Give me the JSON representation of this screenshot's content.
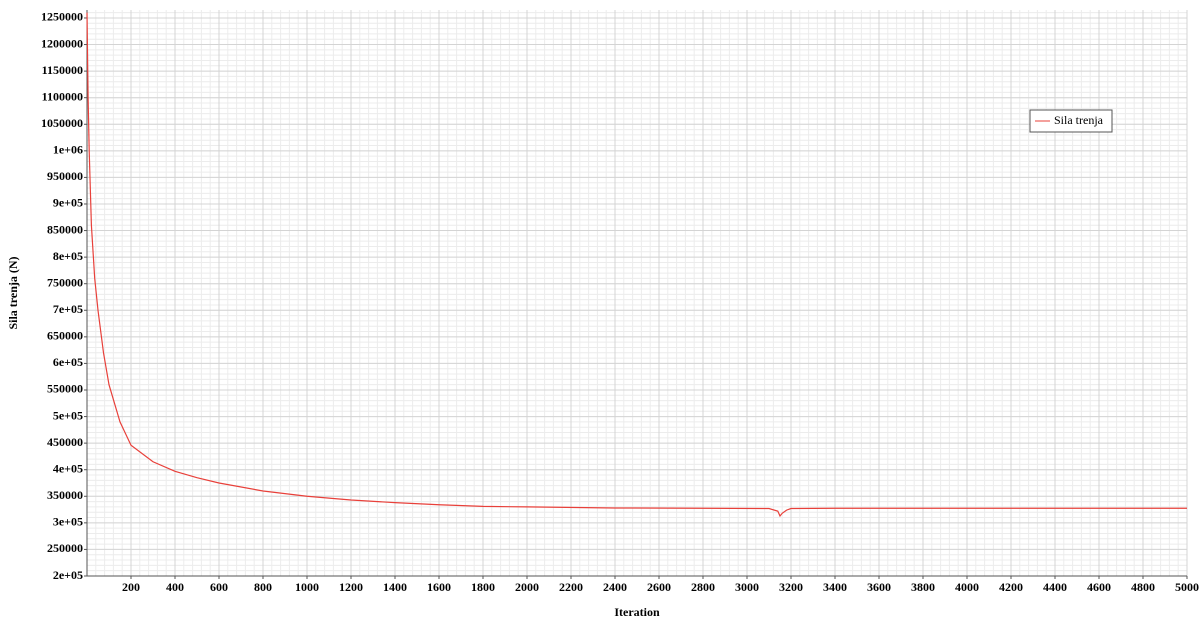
{
  "chart_data": {
    "type": "line",
    "x_label": "Iteration",
    "y_label": "Sila trenja (N)",
    "series": [
      {
        "name": "Sila trenja",
        "color": "#e8403a",
        "x": [
          0,
          5,
          10,
          20,
          35,
          50,
          75,
          100,
          150,
          200,
          300,
          400,
          500,
          600,
          800,
          1000,
          1200,
          1400,
          1600,
          1800,
          2000,
          2400,
          2800,
          3100,
          3140,
          3150,
          3160,
          3180,
          3200,
          3400,
          4000,
          5000
        ],
        "values": [
          1260000,
          1100000,
          1000000,
          860000,
          760000,
          700000,
          620000,
          560000,
          490000,
          446000,
          415000,
          397000,
          385000,
          375000,
          360000,
          350000,
          343000,
          338000,
          334000,
          331000,
          330000,
          328000,
          327500,
          327000,
          322000,
          313000,
          318000,
          324000,
          327000,
          327500,
          327500,
          327500
        ]
      }
    ],
    "xlim": [
      0,
      5000
    ],
    "xticks": [
      200,
      400,
      600,
      800,
      1000,
      1200,
      1400,
      1600,
      1800,
      2000,
      2200,
      2400,
      2600,
      2800,
      3000,
      3200,
      3400,
      3600,
      3800,
      4000,
      4200,
      4400,
      4600,
      4800,
      5000
    ],
    "ylim": [
      200000,
      1265000
    ],
    "yticks": [
      {
        "value": 200000,
        "label": "2e+05"
      },
      250000,
      {
        "value": 300000,
        "label": "3e+05"
      },
      350000,
      {
        "value": 400000,
        "label": "4e+05"
      },
      450000,
      {
        "value": 500000,
        "label": "5e+05"
      },
      550000,
      {
        "value": 600000,
        "label": "6e+05"
      },
      650000,
      {
        "value": 700000,
        "label": "7e+05"
      },
      750000,
      {
        "value": 800000,
        "label": "8e+05"
      },
      850000,
      {
        "value": 900000,
        "label": "9e+05"
      },
      950000,
      {
        "value": 1000000,
        "label": "1e+06"
      },
      1050000,
      1100000,
      1150000,
      1200000,
      1250000
    ],
    "grid": true,
    "legend": "upper right"
  }
}
